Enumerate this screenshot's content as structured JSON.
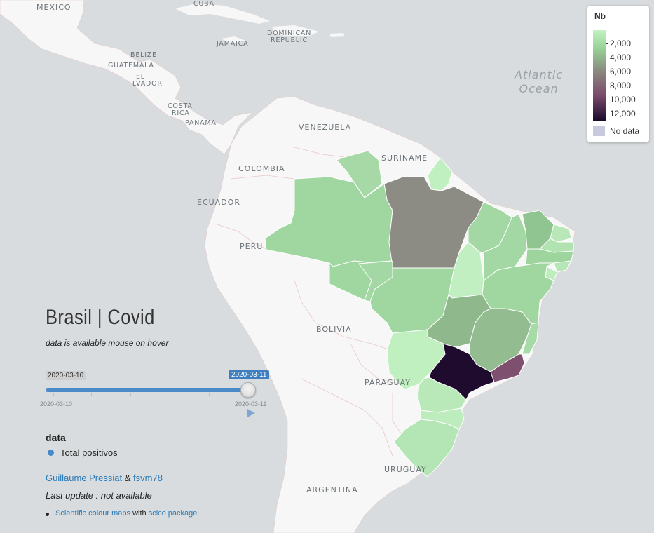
{
  "map": {
    "place_labels": {
      "mexico": "MEXICO",
      "cuba": "CUBA",
      "belize": "BELIZE",
      "guatemala": "GUATEMALA",
      "el_salvador_1": "EL",
      "el_salvador_2": "LVADOR",
      "jamaica": "JAMAICA",
      "dominican_1": "DOMINICAN",
      "dominican_2": "REPUBLIC",
      "costa_rica_1": "COSTA",
      "costa_rica_2": "RICA",
      "panama": "PANAMA",
      "venezuela": "VENEZUELA",
      "colombia": "COLOMBIA",
      "suriname": "SURINAME",
      "ecuador": "ECUADOR",
      "peru": "PERU",
      "bolivia": "BOLIVIA",
      "paraguay": "PARAGUAY",
      "uruguay": "URUGUAY",
      "argentina": "ARGENTINA"
    },
    "ocean": {
      "line1": "Atlantic",
      "line2": "Ocean"
    }
  },
  "legend": {
    "title": "Nb",
    "ticks": [
      "2,000",
      "4,000",
      "6,000",
      "8,000",
      "10,000",
      "12,000"
    ],
    "no_data_label": "No data",
    "no_data_color": "#c9c9de"
  },
  "panel": {
    "title": "Brasil | Covid",
    "subtitle": "data is available mouse on hover",
    "slider": {
      "min_label": "2020-03-10",
      "current_label": "2020-03-11",
      "axis_start": "2020-03-10",
      "axis_end": "2020-03-11",
      "position": 1.0
    },
    "data_heading": "data",
    "data_items": [
      {
        "label": "Total positivos",
        "color": "#4689c8"
      }
    ],
    "credits": {
      "author1": "Guillaume Pressiat",
      "separator": "&",
      "author2": "fsvm78"
    },
    "last_update": "Last update : not available",
    "reference": {
      "link1": "Scientific colour maps",
      "with": "with",
      "link2": "scico package"
    }
  },
  "colors": {
    "land": "#f7f7f7",
    "water": "#d8dcde",
    "accent": "#4689c8",
    "scale_low": "#c3f2c3",
    "scale_high": "#1a0a2c"
  }
}
